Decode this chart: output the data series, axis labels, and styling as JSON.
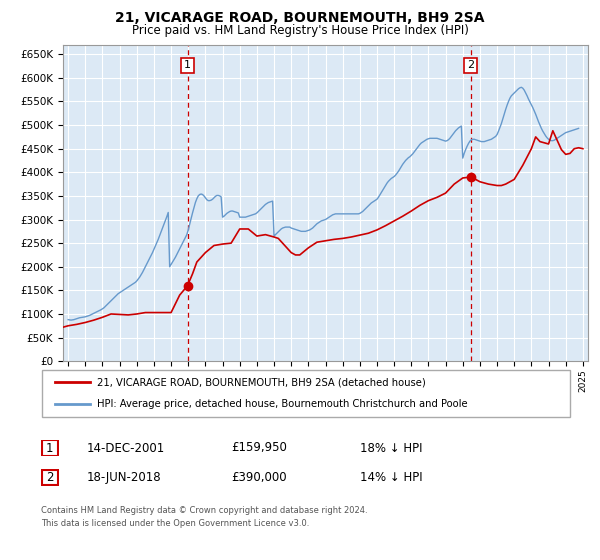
{
  "title": "21, VICARAGE ROAD, BOURNEMOUTH, BH9 2SA",
  "subtitle": "Price paid vs. HM Land Registry's House Price Index (HPI)",
  "background_color": "#ffffff",
  "plot_bg_color": "#dce9f5",
  "grid_color": "#ffffff",
  "red_color": "#cc0000",
  "blue_color": "#6699cc",
  "sale1": {
    "date_num": 2001.96,
    "price": 159950
  },
  "sale2": {
    "date_num": 2018.46,
    "price": 390000
  },
  "legend_line1": "21, VICARAGE ROAD, BOURNEMOUTH, BH9 2SA (detached house)",
  "legend_line2": "HPI: Average price, detached house, Bournemouth Christchurch and Poole",
  "table_row1": [
    "1",
    "14-DEC-2001",
    "£159,950",
    "18% ↓ HPI"
  ],
  "table_row2": [
    "2",
    "18-JUN-2018",
    "£390,000",
    "14% ↓ HPI"
  ],
  "footer1": "Contains HM Land Registry data © Crown copyright and database right 2024.",
  "footer2": "This data is licensed under the Open Government Licence v3.0.",
  "ylim": [
    0,
    670000
  ],
  "xlim_start": 1994.7,
  "xlim_end": 2025.3,
  "hpi_years": [
    1995.0,
    1995.083,
    1995.167,
    1995.25,
    1995.333,
    1995.417,
    1995.5,
    1995.583,
    1995.667,
    1995.75,
    1995.833,
    1995.917,
    1996.0,
    1996.083,
    1996.167,
    1996.25,
    1996.333,
    1996.417,
    1996.5,
    1996.583,
    1996.667,
    1996.75,
    1996.833,
    1996.917,
    1997.0,
    1997.083,
    1997.167,
    1997.25,
    1997.333,
    1997.417,
    1997.5,
    1997.583,
    1997.667,
    1997.75,
    1997.833,
    1997.917,
    1998.0,
    1998.083,
    1998.167,
    1998.25,
    1998.333,
    1998.417,
    1998.5,
    1998.583,
    1998.667,
    1998.75,
    1998.833,
    1998.917,
    1999.0,
    1999.083,
    1999.167,
    1999.25,
    1999.333,
    1999.417,
    1999.5,
    1999.583,
    1999.667,
    1999.75,
    1999.833,
    1999.917,
    2000.0,
    2000.083,
    2000.167,
    2000.25,
    2000.333,
    2000.417,
    2000.5,
    2000.583,
    2000.667,
    2000.75,
    2000.833,
    2000.917,
    2001.0,
    2001.083,
    2001.167,
    2001.25,
    2001.333,
    2001.417,
    2001.5,
    2001.583,
    2001.667,
    2001.75,
    2001.833,
    2001.917,
    2002.0,
    2002.083,
    2002.167,
    2002.25,
    2002.333,
    2002.417,
    2002.5,
    2002.583,
    2002.667,
    2002.75,
    2002.833,
    2002.917,
    2003.0,
    2003.083,
    2003.167,
    2003.25,
    2003.333,
    2003.417,
    2003.5,
    2003.583,
    2003.667,
    2003.75,
    2003.833,
    2003.917,
    2004.0,
    2004.083,
    2004.167,
    2004.25,
    2004.333,
    2004.417,
    2004.5,
    2004.583,
    2004.667,
    2004.75,
    2004.833,
    2004.917,
    2005.0,
    2005.083,
    2005.167,
    2005.25,
    2005.333,
    2005.417,
    2005.5,
    2005.583,
    2005.667,
    2005.75,
    2005.833,
    2005.917,
    2006.0,
    2006.083,
    2006.167,
    2006.25,
    2006.333,
    2006.417,
    2006.5,
    2006.583,
    2006.667,
    2006.75,
    2006.833,
    2006.917,
    2007.0,
    2007.083,
    2007.167,
    2007.25,
    2007.333,
    2007.417,
    2007.5,
    2007.583,
    2007.667,
    2007.75,
    2007.833,
    2007.917,
    2008.0,
    2008.083,
    2008.167,
    2008.25,
    2008.333,
    2008.417,
    2008.5,
    2008.583,
    2008.667,
    2008.75,
    2008.833,
    2008.917,
    2009.0,
    2009.083,
    2009.167,
    2009.25,
    2009.333,
    2009.417,
    2009.5,
    2009.583,
    2009.667,
    2009.75,
    2009.833,
    2009.917,
    2010.0,
    2010.083,
    2010.167,
    2010.25,
    2010.333,
    2010.417,
    2010.5,
    2010.583,
    2010.667,
    2010.75,
    2010.833,
    2010.917,
    2011.0,
    2011.083,
    2011.167,
    2011.25,
    2011.333,
    2011.417,
    2011.5,
    2011.583,
    2011.667,
    2011.75,
    2011.833,
    2011.917,
    2012.0,
    2012.083,
    2012.167,
    2012.25,
    2012.333,
    2012.417,
    2012.5,
    2012.583,
    2012.667,
    2012.75,
    2012.833,
    2012.917,
    2013.0,
    2013.083,
    2013.167,
    2013.25,
    2013.333,
    2013.417,
    2013.5,
    2013.583,
    2013.667,
    2013.75,
    2013.833,
    2013.917,
    2014.0,
    2014.083,
    2014.167,
    2014.25,
    2014.333,
    2014.417,
    2014.5,
    2014.583,
    2014.667,
    2014.75,
    2014.833,
    2014.917,
    2015.0,
    2015.083,
    2015.167,
    2015.25,
    2015.333,
    2015.417,
    2015.5,
    2015.583,
    2015.667,
    2015.75,
    2015.833,
    2015.917,
    2016.0,
    2016.083,
    2016.167,
    2016.25,
    2016.333,
    2016.417,
    2016.5,
    2016.583,
    2016.667,
    2016.75,
    2016.833,
    2016.917,
    2017.0,
    2017.083,
    2017.167,
    2017.25,
    2017.333,
    2017.417,
    2017.5,
    2017.583,
    2017.667,
    2017.75,
    2017.833,
    2017.917,
    2018.0,
    2018.083,
    2018.167,
    2018.25,
    2018.333,
    2018.417,
    2018.5,
    2018.583,
    2018.667,
    2018.75,
    2018.833,
    2018.917,
    2019.0,
    2019.083,
    2019.167,
    2019.25,
    2019.333,
    2019.417,
    2019.5,
    2019.583,
    2019.667,
    2019.75,
    2019.833,
    2019.917,
    2020.0,
    2020.083,
    2020.167,
    2020.25,
    2020.333,
    2020.417,
    2020.5,
    2020.583,
    2020.667,
    2020.75,
    2020.833,
    2020.917,
    2021.0,
    2021.083,
    2021.167,
    2021.25,
    2021.333,
    2021.417,
    2021.5,
    2021.583,
    2021.667,
    2021.75,
    2021.833,
    2021.917,
    2022.0,
    2022.083,
    2022.167,
    2022.25,
    2022.333,
    2022.417,
    2022.5,
    2022.583,
    2022.667,
    2022.75,
    2022.833,
    2022.917,
    2023.0,
    2023.083,
    2023.167,
    2023.25,
    2023.333,
    2023.417,
    2023.5,
    2023.583,
    2023.667,
    2023.75,
    2023.833,
    2023.917,
    2024.0,
    2024.083,
    2024.167,
    2024.25,
    2024.333,
    2024.417,
    2024.5,
    2024.583,
    2024.667,
    2024.75
  ],
  "hpi_values": [
    88000,
    87500,
    87000,
    87500,
    88000,
    89000,
    90000,
    91000,
    92000,
    92500,
    93000,
    93500,
    94000,
    95000,
    96000,
    97000,
    98500,
    100000,
    101500,
    103000,
    104500,
    106000,
    107500,
    109000,
    111000,
    113000,
    116000,
    119000,
    122000,
    125000,
    128000,
    131000,
    134000,
    137000,
    140000,
    143000,
    145000,
    147000,
    149000,
    151000,
    153000,
    155000,
    157000,
    159000,
    161000,
    163000,
    165000,
    167000,
    170000,
    174000,
    178000,
    183000,
    188000,
    194000,
    200000,
    206000,
    212000,
    218000,
    224000,
    230000,
    237000,
    244000,
    251000,
    258000,
    266000,
    274000,
    282000,
    290000,
    298000,
    306000,
    315000,
    200000,
    205000,
    210000,
    215000,
    220000,
    226000,
    232000,
    238000,
    244000,
    250000,
    256000,
    262000,
    268000,
    278000,
    290000,
    302000,
    314000,
    325000,
    336000,
    344000,
    350000,
    353000,
    354000,
    353000,
    350000,
    346000,
    342000,
    340000,
    340000,
    341000,
    343000,
    346000,
    349000,
    351000,
    351000,
    350000,
    348000,
    305000,
    307000,
    310000,
    313000,
    315000,
    317000,
    318000,
    318000,
    317000,
    316000,
    315000,
    314000,
    305000,
    305000,
    305000,
    305000,
    305000,
    306000,
    307000,
    308000,
    309000,
    310000,
    311000,
    312000,
    314000,
    317000,
    320000,
    323000,
    326000,
    329000,
    332000,
    334000,
    336000,
    337000,
    338000,
    339000,
    265000,
    268000,
    271000,
    274000,
    277000,
    280000,
    282000,
    283000,
    284000,
    284000,
    284000,
    284000,
    282000,
    281000,
    280000,
    279000,
    278000,
    277000,
    276000,
    275000,
    275000,
    275000,
    275000,
    276000,
    277000,
    278000,
    280000,
    282000,
    285000,
    288000,
    291000,
    293000,
    295000,
    297000,
    298000,
    299000,
    300000,
    302000,
    304000,
    306000,
    308000,
    310000,
    311000,
    312000,
    312000,
    312000,
    312000,
    312000,
    312000,
    312000,
    312000,
    312000,
    312000,
    312000,
    312000,
    312000,
    312000,
    312000,
    312000,
    312000,
    313000,
    315000,
    317000,
    320000,
    323000,
    326000,
    329000,
    332000,
    335000,
    337000,
    339000,
    341000,
    343000,
    347000,
    352000,
    357000,
    362000,
    367000,
    372000,
    377000,
    381000,
    384000,
    387000,
    389000,
    391000,
    394000,
    398000,
    402000,
    407000,
    412000,
    417000,
    421000,
    425000,
    428000,
    431000,
    433000,
    436000,
    439000,
    443000,
    447000,
    451000,
    455000,
    459000,
    462000,
    464000,
    466000,
    468000,
    470000,
    471000,
    472000,
    472000,
    472000,
    472000,
    472000,
    472000,
    471000,
    470000,
    469000,
    468000,
    467000,
    466000,
    467000,
    469000,
    472000,
    476000,
    480000,
    484000,
    488000,
    491000,
    494000,
    496000,
    498000,
    430000,
    440000,
    448000,
    455000,
    461000,
    466000,
    469000,
    470000,
    470000,
    469000,
    468000,
    467000,
    466000,
    465000,
    465000,
    465000,
    466000,
    467000,
    468000,
    469000,
    470000,
    472000,
    474000,
    476000,
    480000,
    487000,
    495000,
    503000,
    513000,
    523000,
    533000,
    542000,
    550000,
    557000,
    562000,
    565000,
    568000,
    571000,
    574000,
    577000,
    579000,
    580000,
    578000,
    574000,
    568000,
    562000,
    555000,
    549000,
    543000,
    537000,
    530000,
    523000,
    515000,
    507000,
    500000,
    493000,
    487000,
    482000,
    477000,
    473000,
    470000,
    468000,
    467000,
    467000,
    468000,
    470000,
    472000,
    474000,
    476000,
    478000,
    480000,
    482000,
    484000,
    485000,
    486000,
    487000,
    488000,
    489000,
    490000,
    491000,
    492000,
    493000
  ],
  "red_years": [
    1994.7,
    1995.0,
    1995.5,
    1996.0,
    1996.5,
    1997.0,
    1997.5,
    1998.0,
    1998.5,
    1999.0,
    1999.5,
    2000.0,
    2000.5,
    2001.0,
    2001.5,
    2001.96,
    2001.96,
    2002.25,
    2002.5,
    2003.0,
    2003.5,
    2004.0,
    2004.5,
    2005.0,
    2005.5,
    2006.0,
    2006.5,
    2007.0,
    2007.25,
    2007.5,
    2008.0,
    2008.25,
    2008.5,
    2009.0,
    2009.5,
    2010.0,
    2010.5,
    2011.0,
    2011.5,
    2012.0,
    2012.5,
    2013.0,
    2013.5,
    2014.0,
    2014.5,
    2015.0,
    2015.5,
    2016.0,
    2016.5,
    2017.0,
    2017.5,
    2018.0,
    2018.46,
    2018.46,
    2018.75,
    2019.0,
    2019.5,
    2020.0,
    2020.25,
    2020.5,
    2021.0,
    2021.25,
    2021.5,
    2022.0,
    2022.25,
    2022.5,
    2023.0,
    2023.25,
    2023.5,
    2023.75,
    2024.0,
    2024.25,
    2024.5,
    2024.75,
    2025.0
  ],
  "red_values": [
    72000,
    75000,
    78000,
    82000,
    87000,
    93000,
    100000,
    99000,
    98000,
    100000,
    103000,
    103000,
    103000,
    103000,
    140000,
    159950,
    159950,
    185000,
    210000,
    230000,
    245000,
    248000,
    250000,
    280000,
    280000,
    265000,
    268000,
    263000,
    260000,
    250000,
    230000,
    225000,
    225000,
    240000,
    252000,
    255000,
    258000,
    260000,
    263000,
    267000,
    271000,
    278000,
    287000,
    297000,
    307000,
    318000,
    330000,
    340000,
    347000,
    356000,
    375000,
    388000,
    390000,
    390000,
    385000,
    380000,
    375000,
    372000,
    372000,
    375000,
    385000,
    400000,
    415000,
    450000,
    475000,
    465000,
    460000,
    488000,
    468000,
    448000,
    438000,
    440000,
    450000,
    452000,
    450000
  ]
}
